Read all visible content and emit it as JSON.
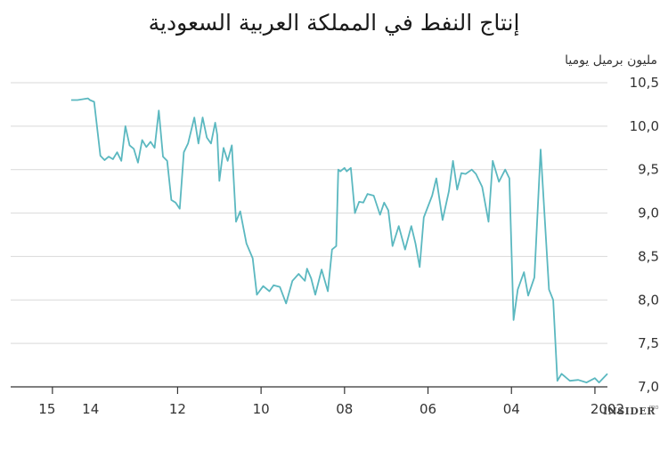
{
  "chart_data": {
    "type": "line",
    "title": "إنتاج النفط في المملكة العربية السعودية",
    "ylabel": "مليون برميل يوميا",
    "ylim": [
      7.0,
      10.5
    ],
    "y_ticks": [
      "7,0",
      "7,5",
      "8,0",
      "8,5",
      "9,0",
      "9,5",
      "10,0",
      "10,5"
    ],
    "y_tick_values": [
      7.0,
      7.5,
      8.0,
      8.5,
      9.0,
      9.5,
      10.0,
      10.5
    ],
    "x_reversed": true,
    "x_tick_labels": [
      "2002",
      "04",
      "06",
      "08",
      "10",
      "12",
      "14",
      "15"
    ],
    "x_tick_values": [
      2002,
      2004,
      2006,
      2008,
      2010,
      2012,
      2014,
      2015
    ],
    "xlim": [
      2001.7,
      2016.0
    ],
    "grid": true,
    "series": [
      {
        "color": "#5bb8c0",
        "x": [
          2001.7,
          2001.9,
          2002.0,
          2002.2,
          2002.4,
          2002.6,
          2002.8,
          2002.9,
          2003.0,
          2003.1,
          2003.3,
          2003.45,
          2003.6,
          2003.7,
          2003.85,
          2003.95,
          2004.05,
          2004.15,
          2004.3,
          2004.45,
          2004.55,
          2004.7,
          2004.85,
          2004.95,
          2005.1,
          2005.2,
          2005.3,
          2005.4,
          2005.5,
          2005.65,
          2005.8,
          2005.9,
          2006.1,
          2006.2,
          2006.3,
          2006.4,
          2006.55,
          2006.7,
          2006.85,
          2006.95,
          2007.05,
          2007.15,
          2007.3,
          2007.45,
          2007.55,
          2007.65,
          2007.75,
          2007.85,
          2007.95,
          2008.0,
          2008.1,
          2008.15,
          2008.2,
          2008.3,
          2008.4,
          2008.55,
          2008.7,
          2008.8,
          2008.9,
          2008.95,
          2009.1,
          2009.25,
          2009.4,
          2009.55,
          2009.7,
          2009.8,
          2009.95,
          2010.1,
          2010.2,
          2010.35,
          2010.5,
          2010.6,
          2010.7,
          2010.8,
          2010.9,
          2011.0,
          2011.05,
          2011.1,
          2011.2,
          2011.3,
          2011.4,
          2011.5,
          2011.6,
          2011.75,
          2011.85,
          2011.95,
          2012.05,
          2012.15,
          2012.25,
          2012.35,
          2012.45,
          2012.55,
          2012.65,
          2012.75,
          2012.85,
          2012.95,
          2013.05,
          2013.15,
          2013.25,
          2013.35,
          2013.45,
          2013.55,
          2013.65,
          2013.75,
          2013.85,
          2014.0,
          2014.1,
          2014.15,
          2014.4,
          2014.55
        ],
        "y": [
          7.15,
          7.05,
          7.1,
          7.05,
          7.08,
          7.07,
          7.15,
          7.07,
          8.0,
          8.12,
          9.73,
          8.26,
          8.05,
          8.32,
          8.12,
          7.77,
          9.4,
          9.5,
          9.36,
          9.6,
          8.9,
          9.3,
          9.45,
          9.5,
          9.45,
          9.46,
          9.27,
          9.6,
          9.25,
          8.92,
          9.4,
          9.2,
          8.95,
          8.38,
          8.65,
          8.85,
          8.58,
          8.85,
          8.62,
          9.03,
          9.12,
          8.98,
          9.2,
          9.22,
          9.12,
          9.13,
          9.0,
          9.52,
          9.48,
          9.52,
          9.48,
          9.5,
          8.62,
          8.58,
          8.1,
          8.35,
          8.06,
          8.25,
          8.36,
          8.22,
          8.3,
          8.22,
          7.96,
          8.15,
          8.17,
          8.1,
          8.16,
          8.06,
          8.48,
          8.65,
          9.02,
          8.9,
          9.78,
          9.6,
          9.75,
          9.37,
          9.9,
          10.04,
          9.8,
          9.87,
          10.1,
          9.8,
          10.1,
          9.8,
          9.7,
          9.05,
          9.12,
          9.15,
          9.6,
          9.65,
          10.18,
          9.75,
          9.82,
          9.76,
          9.84,
          9.58,
          9.74,
          9.78,
          10.0,
          9.6,
          9.7,
          9.62,
          9.65,
          9.61,
          9.66,
          10.28,
          10.3,
          10.32,
          10.3,
          10.3
        ]
      }
    ]
  },
  "brand": {
    "name": "INSIDER",
    "suffix": "PRO"
  }
}
